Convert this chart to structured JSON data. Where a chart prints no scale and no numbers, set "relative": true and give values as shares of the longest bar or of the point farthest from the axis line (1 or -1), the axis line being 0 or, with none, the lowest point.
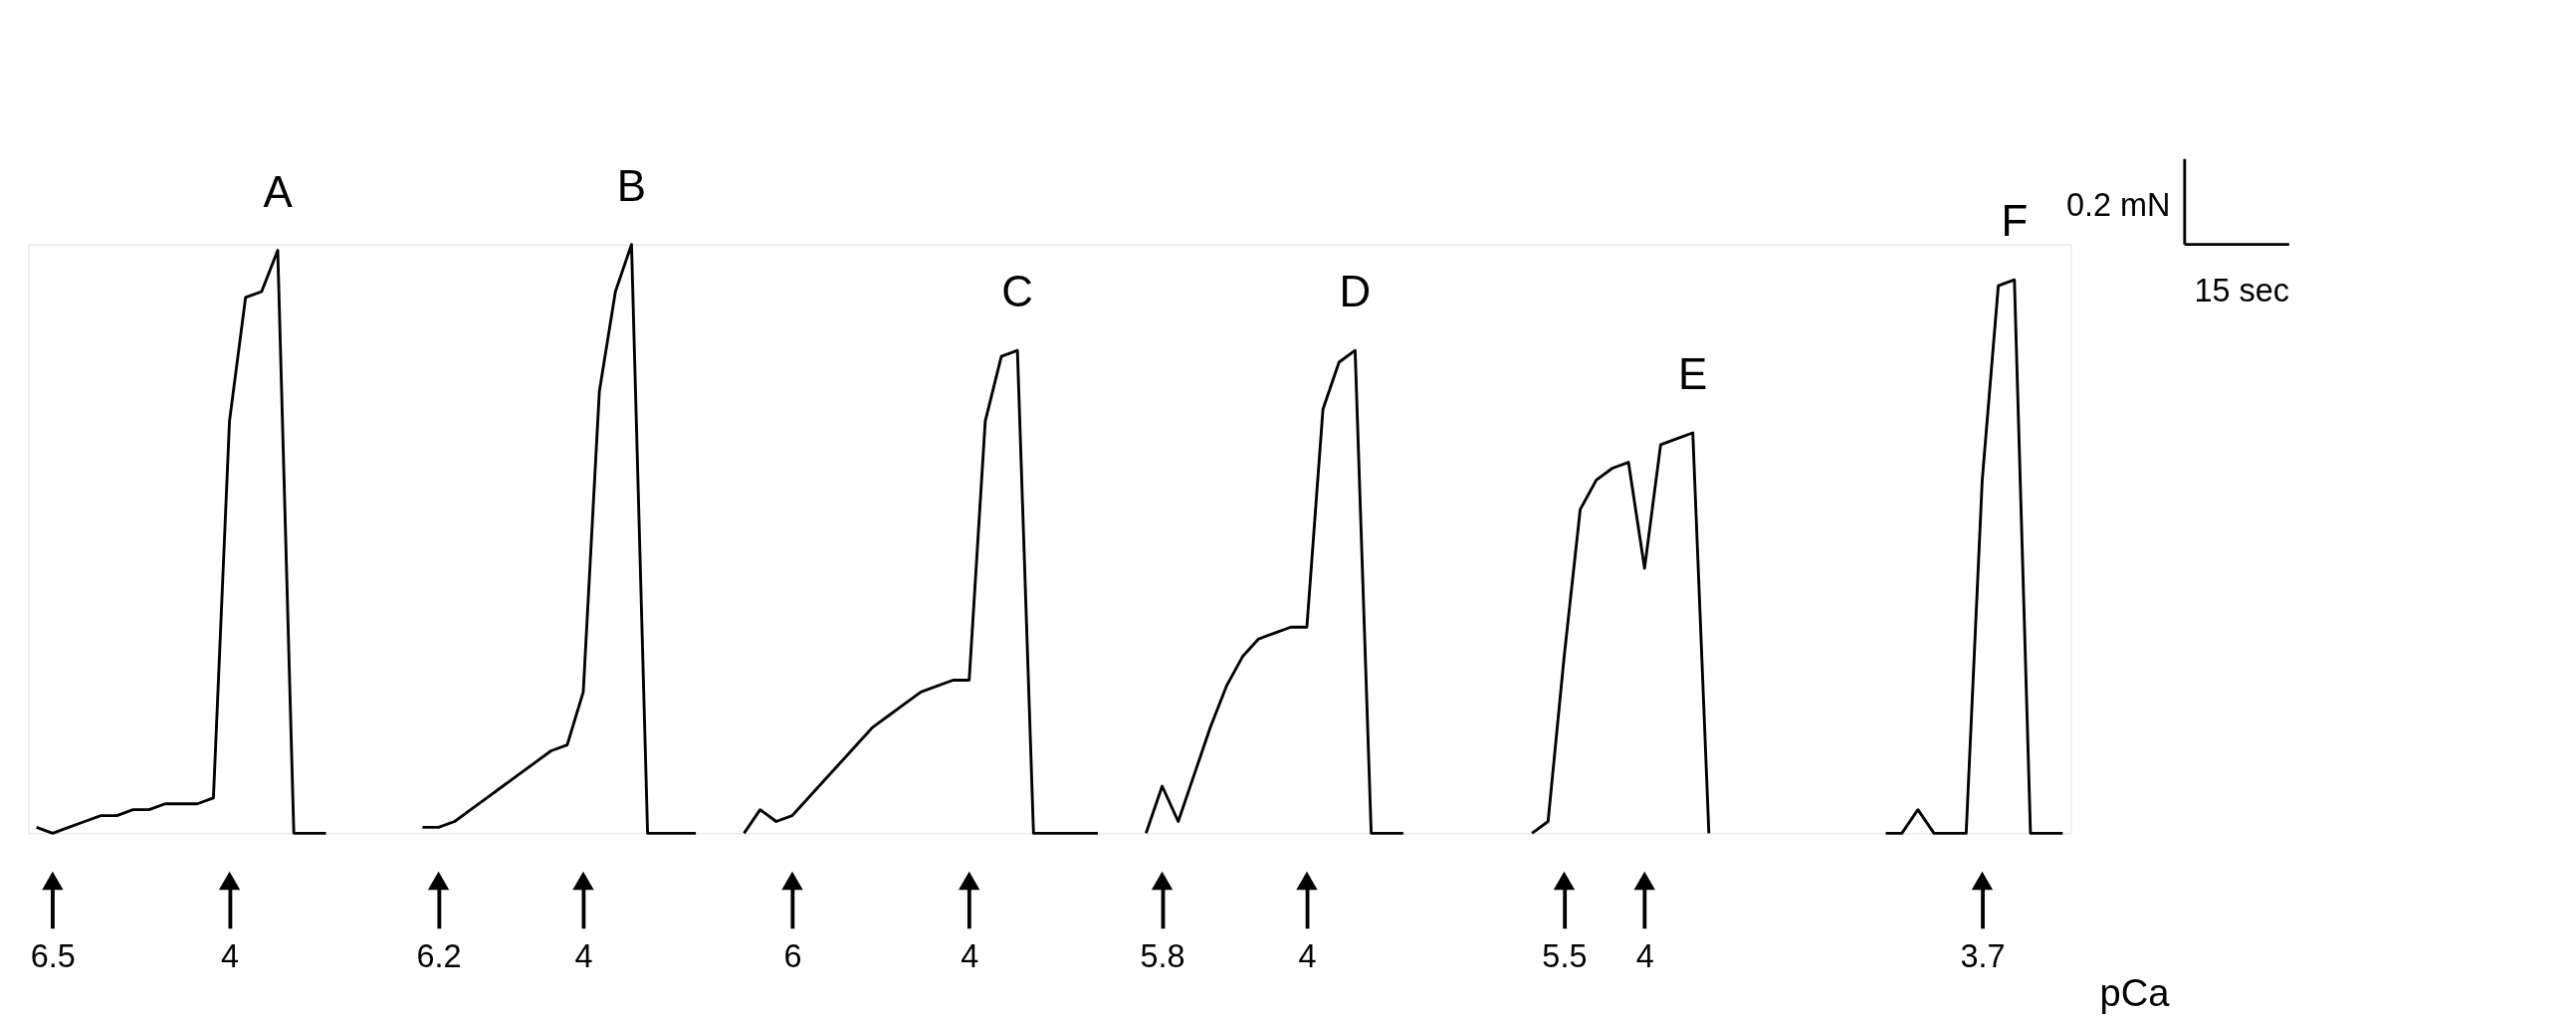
{
  "chart_data": {
    "type": "line",
    "relative": true,
    "xlabel": "pCa",
    "categories": [
      null,
      "6.5",
      null,
      null,
      null,
      null,
      null,
      null,
      null,
      null,
      null,
      null,
      "4",
      null,
      null,
      null,
      null,
      null,
      null,
      null,
      null,
      null,
      null,
      null,
      null,
      "6.2",
      null,
      null,
      null,
      null,
      null,
      null,
      null,
      null,
      "4",
      null,
      null,
      null,
      null,
      null,
      null,
      null,
      null,
      null,
      null,
      null,
      null,
      "6",
      null,
      null,
      null,
      null,
      null,
      null,
      null,
      null,
      null,
      null,
      "4",
      null,
      null,
      null,
      null,
      null,
      null,
      null,
      null,
      null,
      null,
      null,
      "5.8",
      null,
      null,
      null,
      null,
      null,
      null,
      null,
      null,
      "4",
      null,
      null,
      null,
      null,
      null,
      null,
      null,
      null,
      null,
      null,
      null,
      null,
      null,
      null,
      null,
      "5.5",
      null,
      null,
      null,
      null,
      "4",
      null,
      null,
      null,
      null,
      null,
      null,
      null,
      null,
      null,
      null,
      null,
      null,
      null,
      null,
      null,
      null,
      null,
      null,
      null,
      null,
      "3.7",
      null,
      null,
      null,
      null,
      null
    ],
    "series": [
      {
        "name": "A",
        "color": "#000000",
        "values": [
          0.01,
          0.0,
          0.01,
          0.02,
          0.03,
          0.03,
          0.04,
          0.04,
          0.05,
          0.05,
          0.05,
          0.06,
          0.7,
          0.91,
          0.92,
          0.99,
          0.0,
          0.0,
          0.0,
          null,
          null,
          null,
          null,
          null,
          null,
          null,
          null,
          null,
          null,
          null,
          null,
          null,
          null,
          null,
          null,
          null,
          null,
          null,
          null,
          null,
          null,
          null,
          null,
          null,
          null,
          null,
          null,
          null,
          null,
          null,
          null,
          null,
          null,
          null,
          null,
          null,
          null,
          null,
          null,
          null,
          null,
          null,
          null,
          null,
          null,
          null,
          null,
          null,
          null,
          null,
          null,
          null,
          null,
          null,
          null,
          null,
          null,
          null,
          null,
          null,
          null,
          null,
          null,
          null,
          null,
          null,
          null,
          null,
          null,
          null,
          null,
          null,
          null,
          null,
          null,
          null,
          null,
          null,
          null,
          null,
          null,
          null,
          null,
          null,
          null,
          null,
          null,
          null,
          null,
          null,
          null,
          null,
          null,
          null,
          null,
          null,
          null,
          null,
          null,
          null,
          null,
          null,
          null,
          null,
          null,
          null,
          null
        ]
      },
      {
        "name": "B",
        "color": "#000000",
        "values": [
          null,
          null,
          null,
          null,
          null,
          null,
          null,
          null,
          null,
          null,
          null,
          null,
          null,
          null,
          null,
          null,
          null,
          null,
          null,
          null,
          null,
          null,
          null,
          null,
          0.01,
          0.01,
          0.02,
          0.04,
          0.06,
          0.08,
          0.1,
          0.12,
          0.14,
          0.15,
          0.24,
          0.75,
          0.92,
          1.0,
          0.0,
          0.0,
          0.0,
          0.0,
          null,
          null,
          null,
          null,
          null,
          null,
          null,
          null,
          null,
          null,
          null,
          null,
          null,
          null,
          null,
          null,
          null,
          null,
          null,
          null,
          null,
          null,
          null,
          null,
          null,
          null,
          null,
          null,
          null,
          null,
          null,
          null,
          null,
          null,
          null,
          null,
          null,
          null,
          null,
          null,
          null,
          null,
          null,
          null,
          null,
          null,
          null,
          null,
          null,
          null,
          null,
          null,
          null,
          null,
          null,
          null,
          null,
          null,
          null,
          null,
          null,
          null,
          null,
          null,
          null,
          null,
          null,
          null,
          null,
          null,
          null,
          null,
          null,
          null,
          null,
          null,
          null,
          null,
          null,
          null,
          null,
          null,
          null,
          null,
          null
        ]
      },
      {
        "name": "C",
        "color": "#000000",
        "values": [
          null,
          null,
          null,
          null,
          null,
          null,
          null,
          null,
          null,
          null,
          null,
          null,
          null,
          null,
          null,
          null,
          null,
          null,
          null,
          null,
          null,
          null,
          null,
          null,
          null,
          null,
          null,
          null,
          null,
          null,
          null,
          null,
          null,
          null,
          null,
          null,
          null,
          null,
          null,
          null,
          null,
          null,
          null,
          null,
          0.0,
          0.04,
          0.02,
          0.03,
          0.06,
          0.09,
          0.12,
          0.15,
          0.18,
          0.2,
          0.22,
          0.24,
          0.25,
          0.26,
          0.26,
          0.7,
          0.81,
          0.82,
          0.0,
          0.0,
          0.0,
          0.0,
          0.0,
          null,
          null,
          null,
          null,
          null,
          null,
          null,
          null,
          null,
          null,
          null,
          null,
          null,
          null,
          null,
          null,
          null,
          null,
          null,
          null,
          null,
          null,
          null,
          null,
          null,
          null,
          null,
          null,
          null,
          null,
          null,
          null,
          null,
          null,
          null,
          null,
          null,
          null,
          null,
          null,
          null,
          null,
          null,
          null,
          null,
          null,
          null,
          null,
          null,
          null,
          null,
          null,
          null,
          null,
          null,
          null,
          null,
          null,
          null,
          null
        ]
      },
      {
        "name": "D",
        "color": "#000000",
        "values": [
          null,
          null,
          null,
          null,
          null,
          null,
          null,
          null,
          null,
          null,
          null,
          null,
          null,
          null,
          null,
          null,
          null,
          null,
          null,
          null,
          null,
          null,
          null,
          null,
          null,
          null,
          null,
          null,
          null,
          null,
          null,
          null,
          null,
          null,
          null,
          null,
          null,
          null,
          null,
          null,
          null,
          null,
          null,
          null,
          null,
          null,
          null,
          null,
          null,
          null,
          null,
          null,
          null,
          null,
          null,
          null,
          null,
          null,
          null,
          null,
          null,
          null,
          null,
          null,
          null,
          null,
          null,
          null,
          null,
          0.0,
          0.08,
          0.02,
          0.1,
          0.18,
          0.25,
          0.3,
          0.33,
          0.34,
          0.35,
          0.35,
          0.72,
          0.8,
          0.82,
          0.0,
          0.0,
          0.0,
          null,
          null,
          null,
          null,
          null,
          null,
          null,
          null,
          null,
          null,
          null,
          null,
          null,
          null,
          null,
          null,
          null,
          null,
          null,
          null,
          null,
          null,
          null,
          null,
          null,
          null,
          null,
          null,
          null,
          null,
          null,
          null,
          null,
          null,
          null,
          null,
          null,
          null,
          null,
          null,
          null
        ]
      },
      {
        "name": "E",
        "color": "#000000",
        "values": [
          null,
          null,
          null,
          null,
          null,
          null,
          null,
          null,
          null,
          null,
          null,
          null,
          null,
          null,
          null,
          null,
          null,
          null,
          null,
          null,
          null,
          null,
          null,
          null,
          null,
          null,
          null,
          null,
          null,
          null,
          null,
          null,
          null,
          null,
          null,
          null,
          null,
          null,
          null,
          null,
          null,
          null,
          null,
          null,
          null,
          null,
          null,
          null,
          null,
          null,
          null,
          null,
          null,
          null,
          null,
          null,
          null,
          null,
          null,
          null,
          null,
          null,
          null,
          null,
          null,
          null,
          null,
          null,
          null,
          null,
          null,
          null,
          null,
          null,
          null,
          null,
          null,
          null,
          null,
          null,
          null,
          null,
          null,
          null,
          null,
          null,
          null,
          null,
          null,
          null,
          null,
          null,
          null,
          0.0,
          0.02,
          0.3,
          0.55,
          0.6,
          0.62,
          0.63,
          0.45,
          0.66,
          0.67,
          0.68,
          0.0,
          null,
          null,
          null,
          null,
          null,
          null,
          null,
          null,
          null,
          null,
          null,
          null,
          null,
          null,
          null,
          null,
          null,
          null,
          null,
          null,
          null,
          null
        ]
      },
      {
        "name": "F",
        "color": "#000000",
        "values": [
          null,
          null,
          null,
          null,
          null,
          null,
          null,
          null,
          null,
          null,
          null,
          null,
          null,
          null,
          null,
          null,
          null,
          null,
          null,
          null,
          null,
          null,
          null,
          null,
          null,
          null,
          null,
          null,
          null,
          null,
          null,
          null,
          null,
          null,
          null,
          null,
          null,
          null,
          null,
          null,
          null,
          null,
          null,
          null,
          null,
          null,
          null,
          null,
          null,
          null,
          null,
          null,
          null,
          null,
          null,
          null,
          null,
          null,
          null,
          null,
          null,
          null,
          null,
          null,
          null,
          null,
          null,
          null,
          null,
          null,
          null,
          null,
          null,
          null,
          null,
          null,
          null,
          null,
          null,
          null,
          null,
          null,
          null,
          null,
          null,
          null,
          null,
          null,
          null,
          null,
          null,
          null,
          null,
          null,
          null,
          null,
          null,
          null,
          null,
          null,
          null,
          null,
          null,
          null,
          null,
          null,
          null,
          null,
          null,
          null,
          null,
          null,
          null,
          null,
          null,
          0.0,
          0.0,
          0.04,
          0.0,
          0.0,
          0.0,
          0.6,
          0.93,
          0.94,
          0.0,
          0.0,
          0.0
        ]
      }
    ],
    "annotations": [
      "0.2 mN",
      "15 sec"
    ]
  }
}
